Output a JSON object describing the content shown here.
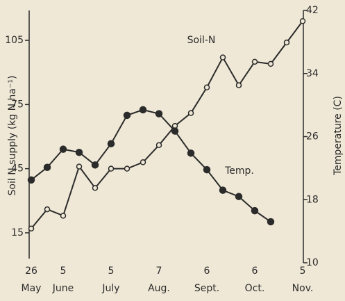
{
  "chart_data": {
    "type": "line",
    "categories": [
      "26",
      null,
      "5",
      null,
      null,
      "5",
      null,
      null,
      "7",
      null,
      null,
      "6",
      null,
      null,
      "6",
      null,
      null,
      "5"
    ],
    "months": [
      "May",
      null,
      "June",
      null,
      null,
      "July",
      null,
      null,
      "Aug.",
      null,
      null,
      "Sept.",
      null,
      null,
      "Oct.",
      null,
      null,
      "Nov."
    ],
    "series": [
      {
        "name": "Soil-N",
        "color": "#2b2b2b",
        "marker": "open",
        "values": [
          17,
          26,
          23,
          46,
          36,
          45,
          45,
          48,
          56,
          65,
          71,
          83,
          97,
          84,
          95,
          94,
          104,
          114
        ]
      },
      {
        "name": "Temp.",
        "color": "#2b2b2b",
        "marker": "filled",
        "axis": "y2",
        "values": [
          20.5,
          22.1,
          24.4,
          24.0,
          22.4,
          25.1,
          28.7,
          29.4,
          28.9,
          26.7,
          23.9,
          21.8,
          19.2,
          18.4,
          16.6,
          15.2,
          null,
          null
        ]
      }
    ],
    "y_label": "Soil N supply (kg N ha⁻¹)",
    "y2_label": "Temperature (C)",
    "ylim": [
      1,
      119
    ],
    "yticks": [
      15,
      45,
      75,
      105
    ],
    "y2lim": [
      10,
      42
    ],
    "y2ticks": [
      10,
      18,
      26,
      34,
      42
    ],
    "grid": false
  }
}
